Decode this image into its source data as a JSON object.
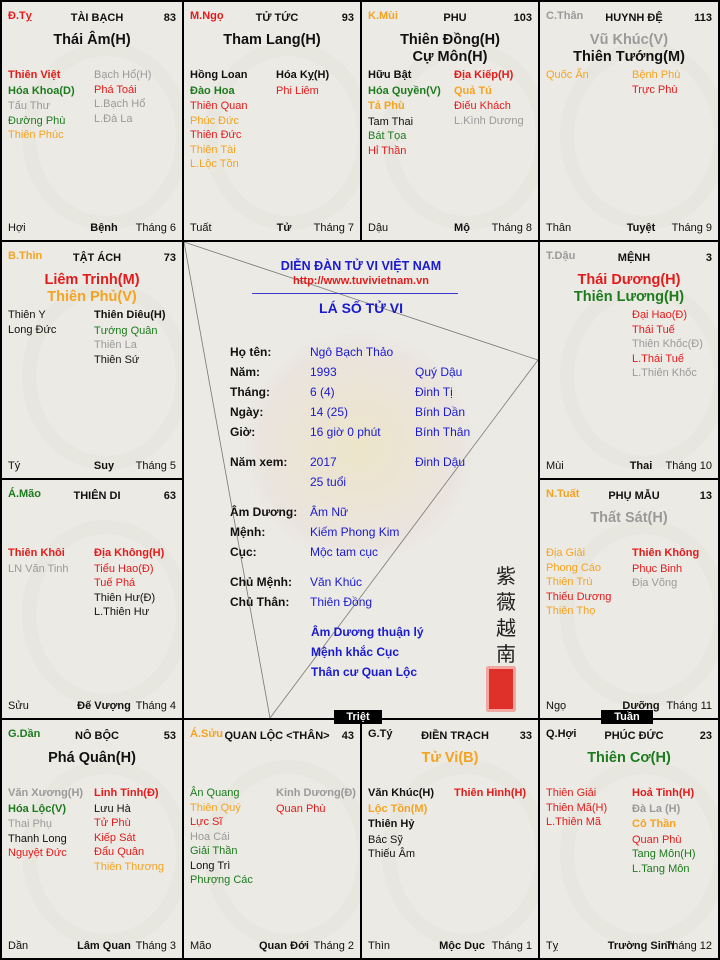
{
  "colors": {
    "r": "#e31b1b",
    "g": "#1d7b1d",
    "o": "#f5a320",
    "y": "#9a9a9a",
    "k": "#111111",
    "b": "#1a1ad0"
  },
  "palaces": [
    {
      "branch": "Đ.Tỵ",
      "bc": "r",
      "name": "TÀI BẠCH",
      "age": "83",
      "mains": [
        {
          "t": "Thái Âm(H)",
          "c": "k"
        }
      ],
      "left": [
        {
          "t": "Thiên Việt",
          "c": "r",
          "b": 1
        },
        {
          "t": "Hóa Khoa(D)",
          "c": "g",
          "b": 1
        },
        {
          "t": "Tấu Thư",
          "c": "y"
        },
        {
          "t": "Đường Phù",
          "c": "g"
        },
        {
          "t": "Thiên Phúc",
          "c": "o"
        }
      ],
      "right": [
        {
          "t": "Bạch Hổ(H)",
          "c": "y"
        },
        {
          "t": "Phá Toái",
          "c": "r"
        },
        {
          "t": "L.Bạch Hổ",
          "c": "y"
        },
        {
          "t": "L.Đà La",
          "c": "y"
        }
      ],
      "foot": [
        "Hợi",
        "Bệnh",
        "Tháng 6"
      ]
    },
    {
      "branch": "M.Ngọ",
      "bc": "r",
      "name": "TỬ TỨC",
      "age": "93",
      "mains": [
        {
          "t": "Tham Lang(H)",
          "c": "k"
        }
      ],
      "left": [
        {
          "t": "Hồng Loan",
          "c": "k",
          "b": 1
        },
        {
          "t": "Đào Hoa",
          "c": "g",
          "b": 1
        },
        {
          "t": "Thiên Quan",
          "c": "r"
        },
        {
          "t": "Phúc Đức",
          "c": "o"
        },
        {
          "t": "Thiên Đức",
          "c": "r"
        },
        {
          "t": "Thiên Tài",
          "c": "o"
        },
        {
          "t": "L.Lộc Tồn",
          "c": "o"
        }
      ],
      "right": [
        {
          "t": "Hóa Kỵ(H)",
          "c": "k",
          "b": 1
        },
        {
          "t": "Phi Liêm",
          "c": "r"
        }
      ],
      "foot": [
        "Tuất",
        "Tử",
        "Tháng 7"
      ]
    },
    {
      "branch": "K.Mùi",
      "bc": "o",
      "name": "PHU",
      "age": "103",
      "mains": [
        {
          "t": "Thiên Đồng(H)",
          "c": "k"
        },
        {
          "t": "Cự Môn(H)",
          "c": "k"
        }
      ],
      "left": [
        {
          "t": "Hữu Bật",
          "c": "k",
          "b": 1
        },
        {
          "t": "Hóa Quyền(V)",
          "c": "g",
          "b": 1
        },
        {
          "t": "Tả Phù",
          "c": "o",
          "b": 1
        },
        {
          "t": "Tam Thai",
          "c": "k"
        },
        {
          "t": "Bát Tọa",
          "c": "g"
        },
        {
          "t": "Hỉ Thần",
          "c": "r"
        }
      ],
      "right": [
        {
          "t": "Địa Kiếp(H)",
          "c": "r",
          "b": 1
        },
        {
          "t": "Quả Tú",
          "c": "o",
          "b": 1
        },
        {
          "t": "Điếu Khách",
          "c": "r"
        },
        {
          "t": "L.Kình Dương",
          "c": "y"
        }
      ],
      "foot": [
        "Dậu",
        "Mộ",
        "Tháng 8"
      ]
    },
    {
      "branch": "C.Thân",
      "bc": "y",
      "name": "HUYNH ĐỆ",
      "age": "113",
      "mains": [
        {
          "t": "Vũ Khúc(V)",
          "c": "y"
        },
        {
          "t": "Thiên Tướng(M)",
          "c": "k"
        }
      ],
      "left": [
        {
          "t": "Quốc Ấn",
          "c": "o"
        }
      ],
      "right": [
        {
          "t": "Bệnh Phù",
          "c": "o"
        },
        {
          "t": "Trực Phù",
          "c": "r"
        }
      ],
      "foot": [
        "Thân",
        "Tuyệt",
        "Tháng 9"
      ]
    },
    {
      "branch": "B.Thìn",
      "bc": "o",
      "name": "TẬT ÁCH",
      "age": "73",
      "mains": [
        {
          "t": "Liêm Trinh(M)",
          "c": "r"
        },
        {
          "t": "Thiên Phủ(V)",
          "c": "o"
        }
      ],
      "left": [
        {
          "t": "Thiên Y",
          "c": "k"
        },
        {
          "t": "Long Đức",
          "c": "k"
        }
      ],
      "right": [
        {
          "t": "Thiên Diêu(H)",
          "c": "k",
          "b": 1
        },
        {
          "t": "Tướng Quân",
          "c": "g"
        },
        {
          "t": "Thiên La",
          "c": "y"
        },
        {
          "t": "Thiên Sứ",
          "c": "k"
        }
      ],
      "foot": [
        "Tý",
        "Suy",
        "Tháng 5"
      ]
    },
    {
      "branch": "T.Dậu",
      "bc": "y",
      "name": "MỆNH",
      "age": "3",
      "mains": [
        {
          "t": "Thái Dương(H)",
          "c": "r"
        },
        {
          "t": "Thiên Lương(H)",
          "c": "g"
        }
      ],
      "left": [],
      "right": [
        {
          "t": "Đại Hao(Đ)",
          "c": "r"
        },
        {
          "t": "Thái Tuế",
          "c": "r"
        },
        {
          "t": "Thiên Khốc(Đ)",
          "c": "y"
        },
        {
          "t": "L.Thái Tuế",
          "c": "r"
        },
        {
          "t": "L.Thiên Khốc",
          "c": "y"
        }
      ],
      "foot": [
        "Mùi",
        "Thai",
        "Tháng 10"
      ]
    },
    {
      "branch": "Á.Mão",
      "bc": "g",
      "name": "THIÊN DI",
      "age": "63",
      "mains": [],
      "left": [
        {
          "t": "Thiên Khôi",
          "c": "r",
          "b": 1
        },
        {
          "t": "LN Văn Tinh",
          "c": "y"
        }
      ],
      "right": [
        {
          "t": "Địa Không(H)",
          "c": "r",
          "b": 1
        },
        {
          "t": "Tiểu Hao(Đ)",
          "c": "r"
        },
        {
          "t": "Tuế Phá",
          "c": "r"
        },
        {
          "t": "Thiên Hư(Đ)",
          "c": "k"
        },
        {
          "t": "L.Thiên Hư",
          "c": "k"
        }
      ],
      "foot": [
        "Sửu",
        "Đế Vượng",
        "Tháng 4"
      ]
    },
    {
      "branch": "N.Tuất",
      "bc": "o",
      "name": "PHỤ MẪU",
      "age": "13",
      "mains": [
        {
          "t": "Thất Sát(H)",
          "c": "y"
        }
      ],
      "left": [
        {
          "t": "Địa Giải",
          "c": "o"
        },
        {
          "t": "Phong Cáo",
          "c": "o"
        },
        {
          "t": "Thiên Trù",
          "c": "o"
        },
        {
          "t": "Thiếu Dương",
          "c": "r"
        },
        {
          "t": "Thiên Thọ",
          "c": "o"
        }
      ],
      "right": [
        {
          "t": "Thiên Không",
          "c": "r",
          "b": 1
        },
        {
          "t": "Phục Binh",
          "c": "r"
        },
        {
          "t": "Địa Võng",
          "c": "y"
        }
      ],
      "foot": [
        "Ngọ",
        "Dưỡng",
        "Tháng 11"
      ]
    },
    {
      "branch": "G.Dần",
      "bc": "g",
      "name": "NÔ BỘC",
      "age": "53",
      "mains": [
        {
          "t": "Phá Quân(H)",
          "c": "k"
        }
      ],
      "left": [
        {
          "t": "Văn Xương(H)",
          "c": "y",
          "b": 1
        },
        {
          "t": "Hóa Lộc(V)",
          "c": "g",
          "b": 1
        },
        {
          "t": "Thai Phụ",
          "c": "y"
        },
        {
          "t": "Thanh Long",
          "c": "k"
        },
        {
          "t": "Nguyệt Đức",
          "c": "r"
        }
      ],
      "right": [
        {
          "t": "Linh Tinh(Đ)",
          "c": "r",
          "b": 1
        },
        {
          "t": "Lưu Hà",
          "c": "k"
        },
        {
          "t": "Tử Phù",
          "c": "r"
        },
        {
          "t": "Kiếp Sát",
          "c": "r"
        },
        {
          "t": "Đẩu Quân",
          "c": "r"
        },
        {
          "t": "Thiên Thương",
          "c": "o"
        }
      ],
      "foot": [
        "Dần",
        "Lâm Quan",
        "Tháng 3"
      ]
    },
    {
      "branch": "Á.Sửu",
      "bc": "o",
      "name": "QUAN LỘC <THÂN>",
      "age": "43",
      "mains": [],
      "left": [
        {
          "t": "Ân Quang",
          "c": "g"
        },
        {
          "t": "Thiên Quý",
          "c": "o"
        },
        {
          "t": "Lực Sĩ",
          "c": "r"
        },
        {
          "t": "Hoa Cái",
          "c": "y"
        },
        {
          "t": "Giải Thần",
          "c": "g"
        },
        {
          "t": "Long Trì",
          "c": "k"
        },
        {
          "t": "Phượng Các",
          "c": "g"
        }
      ],
      "right": [
        {
          "t": "Kinh Dương(Đ)",
          "c": "y",
          "b": 1
        },
        {
          "t": "Quan Phù",
          "c": "r"
        }
      ],
      "foot": [
        "Mão",
        "Quan Đới",
        "Tháng 2"
      ]
    },
    {
      "branch": "G.Tý",
      "bc": "k",
      "name": "ĐIỀN TRẠCH",
      "age": "33",
      "mains": [
        {
          "t": "Tử Vi(B)",
          "c": "o"
        }
      ],
      "left": [
        {
          "t": "Văn Khúc(H)",
          "c": "k",
          "b": 1
        },
        {
          "t": "Lộc Tồn(M)",
          "c": "o",
          "b": 1
        },
        {
          "t": "Thiên Hỷ",
          "c": "k",
          "b": 1
        },
        {
          "t": "Bác Sỹ",
          "c": "k"
        },
        {
          "t": "Thiếu Âm",
          "c": "k"
        }
      ],
      "right": [
        {
          "t": "Thiên Hình(H)",
          "c": "r",
          "b": 1
        }
      ],
      "foot": [
        "Thìn",
        "Mộc Dục",
        "Tháng 1"
      ]
    },
    {
      "branch": "Q.Hợi",
      "bc": "k",
      "name": "PHÚC ĐỨC",
      "age": "23",
      "mains": [
        {
          "t": "Thiên Cơ(H)",
          "c": "g"
        }
      ],
      "left": [
        {
          "t": "Thiên Giải",
          "c": "r"
        },
        {
          "t": "Thiên Mã(H)",
          "c": "r"
        },
        {
          "t": "L.Thiên Mã",
          "c": "r"
        }
      ],
      "right": [
        {
          "t": "Hoả Tinh(H)",
          "c": "r",
          "b": 1
        },
        {
          "t": "Đà La (H)",
          "c": "y",
          "b": 1
        },
        {
          "t": "Cô Thần",
          "c": "o",
          "b": 1
        },
        {
          "t": "Quan Phù",
          "c": "r"
        },
        {
          "t": "Tang Môn(H)",
          "c": "g"
        },
        {
          "t": "L.Tang Môn",
          "c": "g"
        }
      ],
      "foot": [
        "Tỵ",
        "Trường Sinh",
        "Tháng 12"
      ]
    }
  ],
  "center": {
    "forum_title": "DIỄN ĐÀN TỬ VI VIỆT NAM",
    "url": "http://www.tuvivietnam.vn",
    "chart_title": "LÁ SỐ TỬ VI",
    "rows": [
      {
        "label": "Họ tên:",
        "value": "Ngô Bạch Thảo",
        "extra": ""
      },
      {
        "label": "Năm:",
        "value": "1993",
        "extra": "Quý Dậu"
      },
      {
        "label": "Tháng:",
        "value": "6 (4)",
        "extra": "Đinh Tị"
      },
      {
        "label": "Ngày:",
        "value": "14 (25)",
        "extra": "Bính Dần"
      },
      {
        "label": "Giờ:",
        "value": "16 giờ 0 phút",
        "extra": "Bính Thân"
      },
      {
        "label": "Năm xem:",
        "value": "2017",
        "extra": "Đinh Dậu"
      },
      {
        "label": "",
        "value": "25 tuổi",
        "extra": ""
      },
      {
        "label": "Âm Dương:",
        "value": "Âm Nữ",
        "extra": ""
      },
      {
        "label": "Mệnh:",
        "value": "Kiếm Phong Kim",
        "extra": ""
      },
      {
        "label": "Cục:",
        "value": "Mộc tam cục",
        "extra": ""
      },
      {
        "label": "Chủ Mệnh:",
        "value": "Văn Khúc",
        "extra": ""
      },
      {
        "label": "Chủ Thân:",
        "value": "Thiên Đồng",
        "extra": ""
      }
    ],
    "notes": [
      "Âm Dương thuận lý",
      "Mệnh khắc Cục",
      "Thân cư Quan Lộc"
    ],
    "calligraphy": [
      "紫",
      "薇",
      "越",
      "南"
    ]
  },
  "markers": {
    "triet": "Triệt",
    "tuan": "Tuần"
  }
}
